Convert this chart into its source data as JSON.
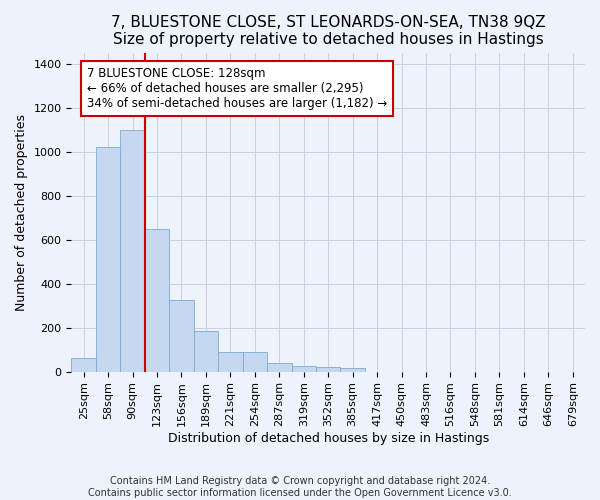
{
  "title": "7, BLUESTONE CLOSE, ST LEONARDS-ON-SEA, TN38 9QZ",
  "subtitle": "Size of property relative to detached houses in Hastings",
  "xlabel": "Distribution of detached houses by size in Hastings",
  "ylabel": "Number of detached properties",
  "categories": [
    "25sqm",
    "58sqm",
    "90sqm",
    "123sqm",
    "156sqm",
    "189sqm",
    "221sqm",
    "254sqm",
    "287sqm",
    "319sqm",
    "352sqm",
    "385sqm",
    "417sqm",
    "450sqm",
    "483sqm",
    "516sqm",
    "548sqm",
    "581sqm",
    "614sqm",
    "646sqm",
    "679sqm"
  ],
  "values": [
    62,
    1020,
    1100,
    650,
    325,
    185,
    90,
    90,
    40,
    25,
    20,
    15,
    0,
    0,
    0,
    0,
    0,
    0,
    0,
    0,
    0
  ],
  "bar_color": "#c5d8ef",
  "bar_edge_color": "#7aaad4",
  "bar_width": 1.0,
  "vline_x_index": 2,
  "vline_color": "#cc0000",
  "annotation_text": "7 BLUESTONE CLOSE: 128sqm\n← 66% of detached houses are smaller (2,295)\n34% of semi-detached houses are larger (1,182) →",
  "annotation_box_color": "#ffffff",
  "annotation_box_edge": "#cc0000",
  "ylim": [
    0,
    1450
  ],
  "yticks": [
    0,
    200,
    400,
    600,
    800,
    1000,
    1200,
    1400
  ],
  "footer": "Contains HM Land Registry data © Crown copyright and database right 2024.\nContains public sector information licensed under the Open Government Licence v3.0.",
  "bg_color": "#eef2fb",
  "grid_color": "#c8d0e8",
  "title_fontsize": 11,
  "axis_label_fontsize": 9,
  "tick_fontsize": 8,
  "annotation_fontsize": 8.5,
  "footer_fontsize": 7
}
